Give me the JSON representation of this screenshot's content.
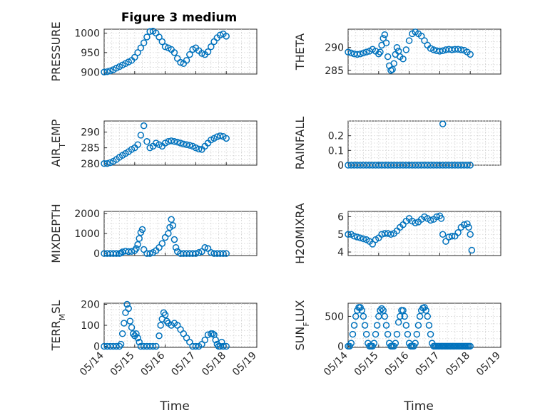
{
  "figure": {
    "title": "Figure 3 medium",
    "marker_color": "#0072BD"
  },
  "chart_data": [
    {
      "type": "scatter",
      "id": "pressure",
      "ylabel": "PRESSURE",
      "xlabel": "",
      "ylim": [
        895,
        1010
      ],
      "yticks": [
        900,
        950,
        1000
      ],
      "ytick_labels": [
        "900",
        "950",
        "1000"
      ],
      "xlim": [
        "05/14",
        "05/19"
      ],
      "series": [
        {
          "x_day": [
            0,
            0.1,
            0.2,
            0.3,
            0.4,
            0.5,
            0.6,
            0.7,
            0.8,
            0.9,
            1,
            1.1,
            1.2,
            1.3,
            1.4,
            1.5,
            1.6,
            1.7,
            1.8,
            1.9,
            2,
            2.1,
            2.2,
            2.3,
            2.4,
            2.5,
            2.6,
            2.7,
            2.8,
            2.9,
            3,
            3.1,
            3.2,
            3.3,
            3.4,
            3.5,
            3.6,
            3.7,
            3.8,
            3.9,
            4
          ],
          "y": [
            900,
            901,
            903,
            906,
            910,
            914,
            918,
            922,
            926,
            930,
            938,
            950,
            962,
            975,
            990,
            1004,
            1005,
            1000,
            990,
            978,
            965,
            962,
            958,
            950,
            935,
            925,
            922,
            930,
            945,
            958,
            962,
            955,
            948,
            945,
            952,
            965,
            978,
            988,
            995,
            998,
            992
          ]
        }
      ]
    },
    {
      "type": "scatter",
      "id": "theta",
      "ylabel": "THETA",
      "xlabel": "",
      "ylim": [
        284.2,
        294
      ],
      "yticks": [
        285,
        290
      ],
      "ytick_labels": [
        "285",
        "290"
      ],
      "xlim": [
        "05/14",
        "05/19"
      ],
      "series": [
        {
          "x_day": [
            0,
            0.1,
            0.2,
            0.3,
            0.4,
            0.5,
            0.6,
            0.7,
            0.8,
            0.9,
            1,
            1.05,
            1.1,
            1.15,
            1.2,
            1.25,
            1.3,
            1.35,
            1.4,
            1.45,
            1.5,
            1.55,
            1.6,
            1.65,
            1.7,
            1.8,
            1.9,
            2,
            2.1,
            2.2,
            2.3,
            2.4,
            2.5,
            2.6,
            2.7,
            2.8,
            2.9,
            3,
            3.1,
            3.2,
            3.3,
            3.4,
            3.5,
            3.6,
            3.7,
            3.8,
            3.9,
            4
          ],
          "y": [
            289,
            288.8,
            288.6,
            288.5,
            288.6,
            288.8,
            289,
            289.2,
            289.6,
            289.2,
            288.6,
            289,
            290.5,
            292,
            292.8,
            291,
            288,
            286,
            285,
            285.2,
            286.5,
            288.5,
            290,
            289.2,
            288,
            287.5,
            289.5,
            291.5,
            293,
            293.4,
            293,
            292.5,
            291.5,
            290.5,
            289.8,
            289.5,
            289.3,
            289.2,
            289.3,
            289.5,
            289.6,
            289.5,
            289.6,
            289.6,
            289.5,
            289.4,
            289,
            288.5
          ]
        }
      ]
    },
    {
      "type": "scatter",
      "id": "air_temp",
      "ylabel": "AIR_TEMP",
      "xlabel": "",
      "ylim": [
        279.5,
        293.5
      ],
      "yticks": [
        280,
        285,
        290
      ],
      "ytick_labels": [
        "280",
        "285",
        "290"
      ],
      "xlim": [
        "05/14",
        "05/19"
      ],
      "series": [
        {
          "x_day": [
            0,
            0.1,
            0.2,
            0.3,
            0.4,
            0.5,
            0.6,
            0.7,
            0.8,
            0.9,
            1,
            1.1,
            1.2,
            1.3,
            1.4,
            1.5,
            1.6,
            1.7,
            1.8,
            1.9,
            2,
            2.1,
            2.2,
            2.3,
            2.4,
            2.5,
            2.6,
            2.7,
            2.8,
            2.9,
            3,
            3.1,
            3.2,
            3.3,
            3.4,
            3.5,
            3.6,
            3.7,
            3.8,
            3.9,
            4
          ],
          "y": [
            280,
            280,
            280.3,
            280.7,
            281.3,
            282,
            282.6,
            283.2,
            283.8,
            284.5,
            285,
            286,
            289,
            292,
            287,
            285,
            285.5,
            286.5,
            286,
            285.5,
            286.5,
            287,
            287.2,
            287,
            286.8,
            286.5,
            286.2,
            286,
            285.8,
            285.5,
            285,
            284.6,
            284.5,
            285.5,
            286.5,
            287.5,
            288,
            288.5,
            288.8,
            288.6,
            288
          ]
        }
      ]
    },
    {
      "type": "scatter",
      "id": "rainfall",
      "ylabel": "RAINFALL",
      "xlabel": "",
      "ylim": [
        0,
        0.3
      ],
      "yticks": [
        0,
        0.1,
        0.2
      ],
      "ytick_labels": [
        "0",
        "0.1",
        "0.2"
      ],
      "xlim": [
        "05/14",
        "05/19"
      ],
      "series": [
        {
          "x_day": [
            0,
            0.1,
            0.2,
            0.3,
            0.4,
            0.5,
            0.6,
            0.7,
            0.8,
            0.9,
            1,
            1.1,
            1.2,
            1.3,
            1.4,
            1.5,
            1.6,
            1.7,
            1.8,
            1.9,
            2,
            2.1,
            2.2,
            2.3,
            2.4,
            2.5,
            2.6,
            2.7,
            2.8,
            2.9,
            3,
            3.1,
            3.2,
            3.3,
            3.4,
            3.5,
            3.6,
            3.7,
            3.8,
            3.9,
            4
          ],
          "y": [
            0,
            0,
            0,
            0,
            0,
            0,
            0,
            0,
            0,
            0,
            0,
            0,
            0,
            0,
            0,
            0,
            0,
            0,
            0,
            0,
            0,
            0,
            0,
            0,
            0,
            0,
            0,
            0,
            0,
            0,
            0,
            0,
            0,
            0,
            0,
            0,
            0,
            0,
            0,
            0,
            0
          ]
        },
        {
          "x_day": [
            3.1
          ],
          "y": [
            0.28
          ]
        }
      ]
    },
    {
      "type": "scatter",
      "id": "mixdepth",
      "ylabel": "MIXDEPTH",
      "xlabel": "",
      "ylim": [
        -100,
        2100
      ],
      "yticks": [
        0,
        1000,
        2000
      ],
      "ytick_labels": [
        "0",
        "1000",
        "2000"
      ],
      "xlim": [
        "05/14",
        "05/19"
      ],
      "series": [
        {
          "x_day": [
            0,
            0.1,
            0.2,
            0.3,
            0.4,
            0.5,
            0.55,
            0.6,
            0.7,
            0.8,
            0.9,
            1,
            1.05,
            1.1,
            1.15,
            1.2,
            1.25,
            1.3,
            1.4,
            1.5,
            1.6,
            1.7,
            1.8,
            1.9,
            2,
            2.1,
            2.15,
            2.2,
            2.25,
            2.3,
            2.35,
            2.4,
            2.5,
            2.6,
            2.7,
            2.8,
            2.9,
            3,
            3.1,
            3.2,
            3.3,
            3.4,
            3.5,
            3.6,
            3.7,
            3.8,
            3.9,
            4
          ],
          "y": [
            0,
            0,
            0,
            0,
            0,
            0,
            30,
            80,
            120,
            100,
            110,
            150,
            250,
            450,
            750,
            1050,
            1200,
            200,
            0,
            0,
            50,
            150,
            300,
            500,
            800,
            1000,
            1300,
            1700,
            1400,
            700,
            300,
            100,
            0,
            0,
            0,
            0,
            0,
            0,
            50,
            100,
            300,
            250,
            50,
            0,
            0,
            0,
            0,
            0
          ]
        }
      ]
    },
    {
      "type": "scatter",
      "id": "h2omixra",
      "ylabel": "H2OMIXRA",
      "xlabel": "",
      "ylim": [
        3.8,
        6.3
      ],
      "yticks": [
        4,
        5,
        6
      ],
      "ytick_labels": [
        "4",
        "5",
        "6"
      ],
      "xlim": [
        "05/14",
        "05/19"
      ],
      "series": [
        {
          "x_day": [
            0,
            0.1,
            0.2,
            0.3,
            0.4,
            0.5,
            0.6,
            0.7,
            0.8,
            0.9,
            1,
            1.1,
            1.2,
            1.3,
            1.4,
            1.5,
            1.6,
            1.7,
            1.8,
            1.9,
            2,
            2.1,
            2.2,
            2.3,
            2.4,
            2.5,
            2.6,
            2.7,
            2.8,
            2.9,
            3,
            3.05,
            3.1,
            3.2,
            3.3,
            3.4,
            3.5,
            3.6,
            3.7,
            3.8,
            3.9,
            3.95,
            4,
            4.05
          ],
          "y": [
            5,
            5,
            4.9,
            4.85,
            4.8,
            4.75,
            4.7,
            4.6,
            4.45,
            4.7,
            4.8,
            5,
            5.05,
            5.05,
            5.0,
            5.05,
            5.2,
            5.4,
            5.55,
            5.75,
            5.9,
            5.75,
            5.65,
            5.7,
            5.85,
            6.0,
            5.9,
            5.8,
            5.85,
            6.0,
            6.05,
            5.9,
            5.0,
            4.6,
            4.85,
            4.9,
            4.9,
            5.1,
            5.4,
            5.55,
            5.6,
            5.4,
            5.0,
            4.1
          ]
        }
      ]
    },
    {
      "type": "scatter",
      "id": "terr_msl",
      "ylabel": "TERR_MSL",
      "xlabel": "Time",
      "ylim": [
        -5,
        205
      ],
      "yticks": [
        0,
        100,
        200
      ],
      "ytick_labels": [
        "0",
        "100",
        "200"
      ],
      "xlim": [
        "05/14",
        "05/19"
      ],
      "xticks": [
        "05/14",
        "05/15",
        "05/16",
        "05/17",
        "05/18",
        "05/19"
      ],
      "series": [
        {
          "x_day": [
            0,
            0.1,
            0.2,
            0.3,
            0.4,
            0.5,
            0.55,
            0.6,
            0.65,
            0.7,
            0.75,
            0.8,
            0.85,
            0.9,
            0.95,
            1,
            1.05,
            1.1,
            1.15,
            1.2,
            1.3,
            1.4,
            1.5,
            1.6,
            1.7,
            1.8,
            1.85,
            1.9,
            1.95,
            2,
            2.05,
            2.1,
            2.2,
            2.3,
            2.4,
            2.5,
            2.6,
            2.7,
            2.8,
            2.9,
            3,
            3.1,
            3.2,
            3.3,
            3.4,
            3.5,
            3.55,
            3.6,
            3.65,
            3.7,
            3.75,
            3.8,
            3.85,
            3.9,
            4
          ],
          "y": [
            0,
            0,
            0,
            0,
            0,
            0,
            10,
            60,
            110,
            160,
            200,
            180,
            120,
            90,
            60,
            50,
            60,
            40,
            20,
            0,
            0,
            0,
            0,
            0,
            0,
            50,
            100,
            130,
            160,
            150,
            120,
            110,
            100,
            110,
            100,
            80,
            60,
            40,
            20,
            0,
            0,
            0,
            10,
            30,
            55,
            60,
            60,
            55,
            30,
            10,
            0,
            0,
            20,
            0,
            0
          ]
        }
      ]
    },
    {
      "type": "scatter",
      "id": "sun_flux",
      "ylabel": "SUN_FLUX",
      "xlabel": "Time",
      "ylim": [
        -20,
        720
      ],
      "yticks": [
        0,
        500
      ],
      "ytick_labels": [
        "0",
        "500"
      ],
      "xlim": [
        "05/14",
        "05/19"
      ],
      "xticks": [
        "05/14",
        "05/15",
        "05/16",
        "05/17",
        "05/18",
        "05/19"
      ],
      "series": [
        {
          "x_day": [
            0,
            0.05,
            0.1,
            0.15,
            0.2,
            0.25,
            0.3,
            0.35,
            0.4,
            0.45,
            0.5,
            0.55,
            0.6,
            0.65,
            0.7,
            0.75,
            0.8,
            0.85,
            0.9,
            0.95,
            1,
            1.05,
            1.1,
            1.15,
            1.2,
            1.25,
            1.3,
            1.35,
            1.4,
            1.45,
            1.5,
            1.55,
            1.6,
            1.65,
            1.7,
            1.75,
            1.8,
            1.85,
            1.9,
            1.95,
            2,
            2.05,
            2.1,
            2.15,
            2.2,
            2.25,
            2.3,
            2.35,
            2.4,
            2.45,
            2.5,
            2.55,
            2.6,
            2.65,
            2.7,
            2.75,
            2.8,
            2.85,
            2.9,
            2.95,
            3,
            3.05,
            3.1,
            3.15,
            3.2,
            3.25,
            3.3,
            3.35,
            3.4,
            3.45,
            3.5,
            3.55,
            3.6,
            3.65,
            3.7,
            3.75,
            3.8,
            3.85,
            3.9,
            3.95,
            4
          ],
          "y": [
            0,
            0,
            50,
            200,
            350,
            500,
            600,
            650,
            650,
            600,
            500,
            350,
            200,
            50,
            0,
            0,
            0,
            50,
            200,
            350,
            500,
            600,
            630,
            600,
            500,
            350,
            200,
            50,
            0,
            0,
            0,
            50,
            200,
            400,
            500,
            600,
            600,
            500,
            350,
            200,
            50,
            0,
            0,
            0,
            50,
            200,
            350,
            500,
            600,
            640,
            650,
            600,
            500,
            350,
            200,
            50,
            0,
            0,
            0,
            0,
            0,
            0,
            0,
            0,
            0,
            0,
            0,
            0,
            0,
            0,
            0,
            0,
            0,
            0,
            0,
            0,
            0,
            0,
            0,
            0,
            0
          ]
        }
      ]
    }
  ]
}
